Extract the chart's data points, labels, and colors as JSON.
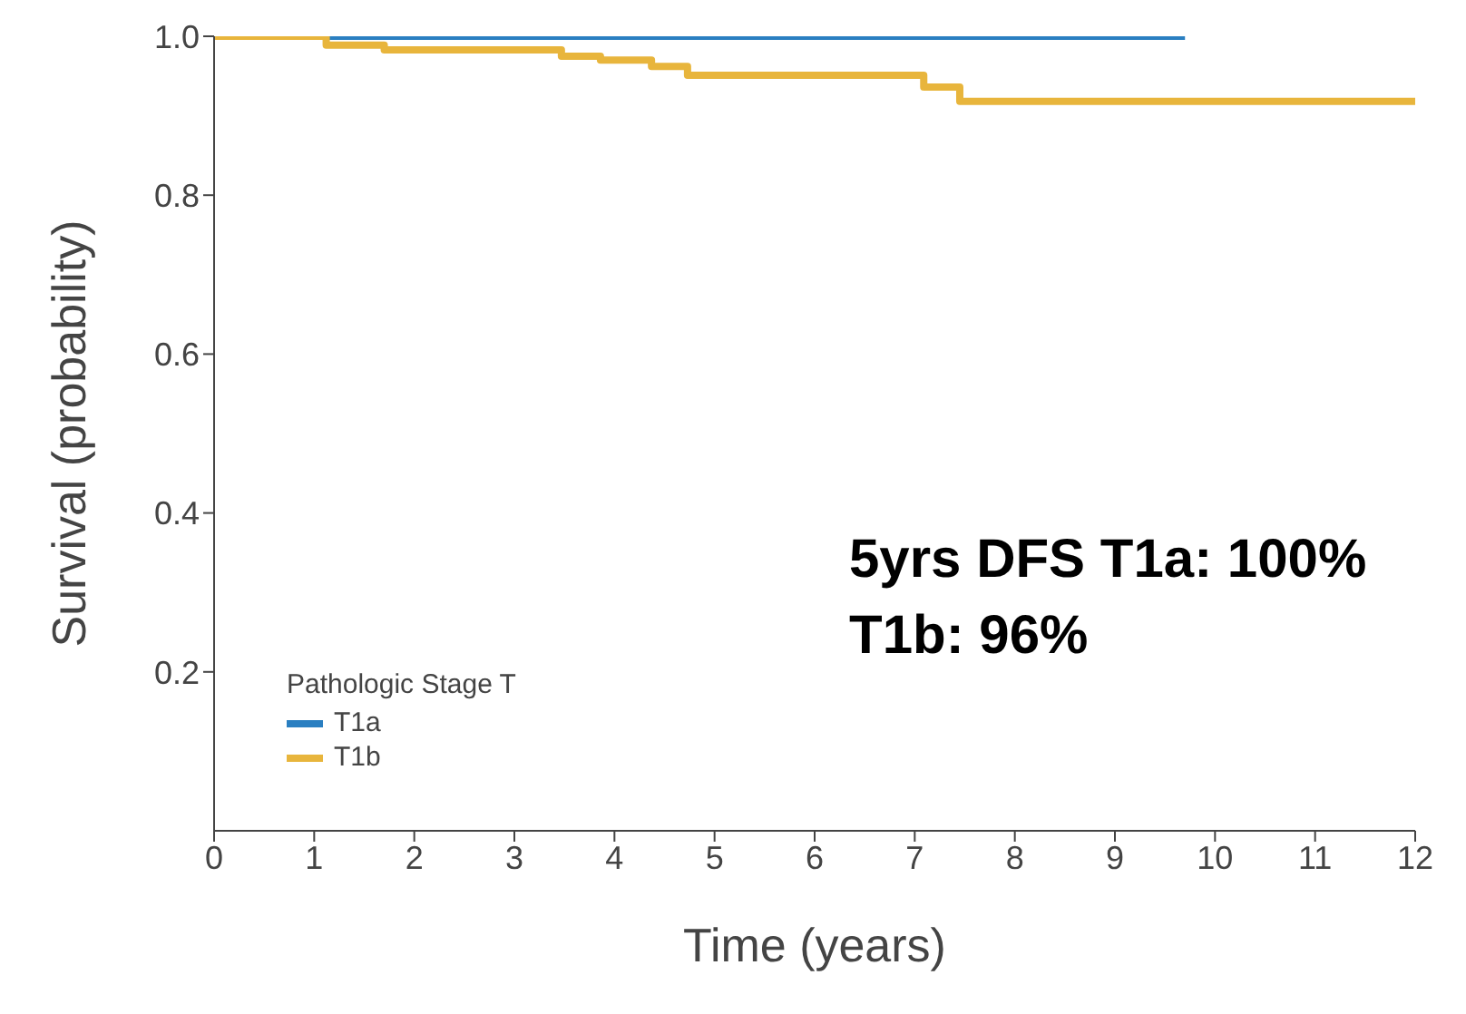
{
  "chart_data": {
    "type": "step",
    "xlabel": "Time (years)",
    "ylabel": "Survival (probability)",
    "legend_title": "Pathologic Stage T",
    "legend": "bottom left",
    "grid": false,
    "marker": "none",
    "xlim": [
      0,
      12
    ],
    "xticks": [
      0,
      1,
      2,
      3,
      4,
      5,
      6,
      7,
      8,
      9,
      10,
      11,
      12
    ],
    "ylim": [
      0,
      1
    ],
    "yticks": [
      0.2,
      0.4,
      0.6,
      0.8,
      {
        "value": 1,
        "label": "1.0"
      }
    ],
    "series": [
      {
        "name": "T1a",
        "color": "#2a7fc1",
        "x": [
          0,
          9.7
        ],
        "values": [
          1,
          1
        ]
      },
      {
        "name": "T1b",
        "color": "#e8b53c",
        "x": [
          0,
          1.12,
          1.7,
          3.47,
          3.86,
          4.37,
          4.73,
          7.09,
          7.45,
          12
        ],
        "values": [
          1,
          0.989,
          0.983,
          0.975,
          0.97,
          0.962,
          0.951,
          0.936,
          0.918,
          0.918
        ]
      }
    ],
    "annotations": [
      "5yrs DFS  T1a: 100%",
      "T1b: 96%"
    ]
  }
}
